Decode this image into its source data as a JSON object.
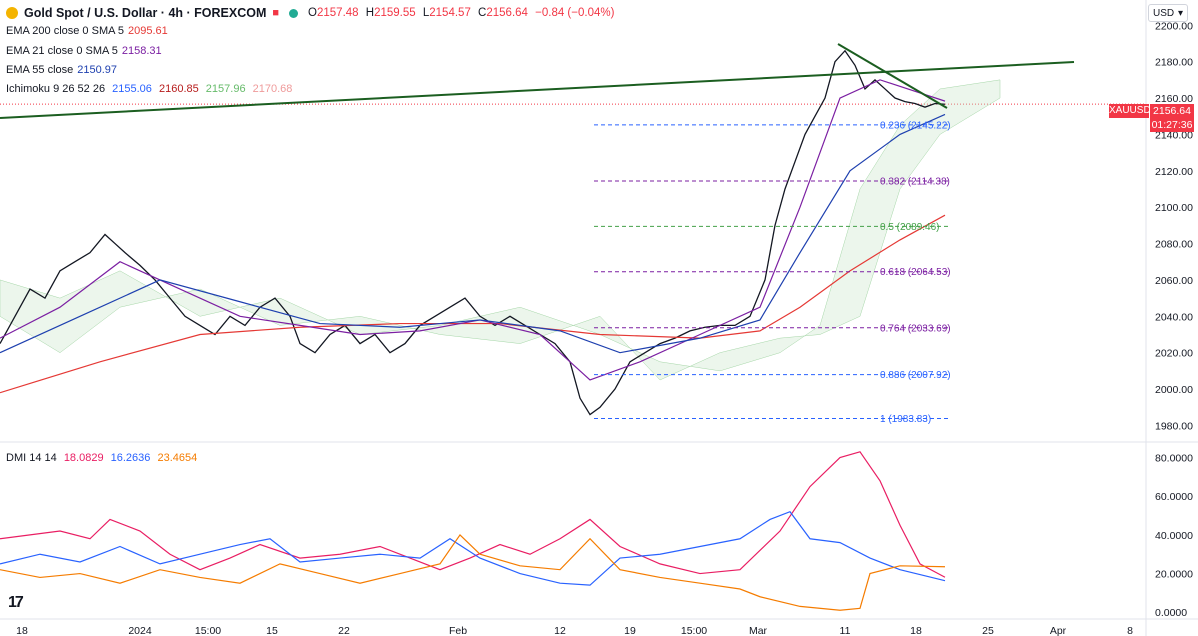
{
  "header": {
    "symbol_title": "Gold Spot / U.S. Dollar · 4h · FOREXCOM",
    "ohlc": {
      "o_label": "O",
      "o": "2157.48",
      "h_label": "H",
      "h": "2159.55",
      "l_label": "L",
      "l": "2154.57",
      "c_label": "C",
      "c": "2156.64",
      "change": "−0.84 (−0.04%)"
    },
    "currency": "USD"
  },
  "indicators": [
    {
      "label": "EMA 200 close 0 SMA 5",
      "value": "2095.61",
      "color": "#e53935"
    },
    {
      "label": "EMA 21 close 0 SMA 5",
      "value": "2158.31",
      "color": "#7b1fa2"
    },
    {
      "label": "EMA 55 close",
      "value": "2150.97",
      "color": "#1e40af"
    },
    {
      "label": "Ichimoku 9 26 52 26",
      "values": [
        "2155.06",
        "2160.85",
        "2157.96",
        "2170.68"
      ],
      "colors": [
        "#2962ff",
        "#b71c1c",
        "#66bb6a",
        "#ef9a9a"
      ]
    }
  ],
  "price_badge": {
    "ticker": "XAUUSD",
    "price": "2156.64",
    "countdown": "01:27:36"
  },
  "dmi": {
    "label": "DMI 14 14",
    "values": [
      "18.0829",
      "16.2636",
      "23.4654"
    ],
    "colors": [
      "#e91e63",
      "#2962ff",
      "#f57c00"
    ]
  },
  "chart_data": [
    {
      "type": "line",
      "title": "Gold Spot / U.S. Dollar · 4h · FOREXCOM",
      "y_ticks": [
        "2200.00",
        "2180.00",
        "2160.00",
        "2140.00",
        "2120.00",
        "2100.00",
        "2080.00",
        "2060.00",
        "2040.00",
        "2020.00",
        "2000.00",
        "1980.00"
      ],
      "ylim": [
        1972,
        2204
      ],
      "x_ticks": [
        "18",
        "2024",
        "15:00",
        "15",
        "22",
        "Feb",
        "12",
        "19",
        "15:00",
        "Mar",
        "11",
        "18",
        "25",
        "Apr",
        "8"
      ],
      "series": [
        {
          "name": "Close",
          "color": "#131722",
          "points": [
            [
              0,
              2025
            ],
            [
              15,
              2040
            ],
            [
              30,
              2055
            ],
            [
              45,
              2050
            ],
            [
              60,
              2065
            ],
            [
              75,
              2070
            ],
            [
              90,
              2075
            ],
            [
              105,
              2085
            ],
            [
              115,
              2080
            ],
            [
              125,
              2075
            ],
            [
              140,
              2068
            ],
            [
              155,
              2060
            ],
            [
              170,
              2050
            ],
            [
              185,
              2040
            ],
            [
              200,
              2035
            ],
            [
              215,
              2030
            ],
            [
              230,
              2040
            ],
            [
              245,
              2035
            ],
            [
              260,
              2045
            ],
            [
              275,
              2050
            ],
            [
              290,
              2040
            ],
            [
              300,
              2025
            ],
            [
              315,
              2020
            ],
            [
              330,
              2030
            ],
            [
              345,
              2035
            ],
            [
              360,
              2025
            ],
            [
              375,
              2030
            ],
            [
              390,
              2020
            ],
            [
              405,
              2025
            ],
            [
              420,
              2035
            ],
            [
              435,
              2040
            ],
            [
              450,
              2045
            ],
            [
              465,
              2050
            ],
            [
              480,
              2040
            ],
            [
              495,
              2035
            ],
            [
              510,
              2040
            ],
            [
              525,
              2035
            ],
            [
              540,
              2030
            ],
            [
              555,
              2025
            ],
            [
              570,
              2015
            ],
            [
              580,
              1995
            ],
            [
              590,
              1986
            ],
            [
              600,
              1990
            ],
            [
              615,
              2000
            ],
            [
              630,
              2015
            ],
            [
              645,
              2020
            ],
            [
              660,
              2025
            ],
            [
              675,
              2028
            ],
            [
              690,
              2032
            ],
            [
              705,
              2034
            ],
            [
              720,
              2035
            ],
            [
              735,
              2035
            ],
            [
              750,
              2040
            ],
            [
              765,
              2060
            ],
            [
              775,
              2090
            ],
            [
              785,
              2110
            ],
            [
              795,
              2125
            ],
            [
              805,
              2140
            ],
            [
              815,
              2150
            ],
            [
              825,
              2160
            ],
            [
              835,
              2180
            ],
            [
              845,
              2186
            ],
            [
              855,
              2178
            ],
            [
              865,
              2165
            ],
            [
              875,
              2170
            ],
            [
              885,
              2165
            ],
            [
              895,
              2160
            ],
            [
              905,
              2158
            ],
            [
              915,
              2157
            ],
            [
              925,
              2155
            ],
            [
              935,
              2157
            ],
            [
              945,
              2156.6
            ]
          ]
        },
        {
          "name": "EMA 200",
          "color": "#e53935",
          "points": [
            [
              0,
              1998
            ],
            [
              100,
              2015
            ],
            [
              200,
              2030
            ],
            [
              300,
              2034
            ],
            [
              400,
              2036
            ],
            [
              500,
              2036
            ],
            [
              600,
              2030
            ],
            [
              700,
              2028
            ],
            [
              760,
              2032
            ],
            [
              800,
              2045
            ],
            [
              850,
              2065
            ],
            [
              900,
              2082
            ],
            [
              945,
              2095.6
            ]
          ]
        },
        {
          "name": "EMA 21",
          "color": "#7b1fa2",
          "points": [
            [
              0,
              2028
            ],
            [
              60,
              2045
            ],
            [
              120,
              2070
            ],
            [
              180,
              2055
            ],
            [
              240,
              2040
            ],
            [
              300,
              2035
            ],
            [
              360,
              2030
            ],
            [
              420,
              2032
            ],
            [
              480,
              2038
            ],
            [
              540,
              2030
            ],
            [
              590,
              2005
            ],
            [
              640,
              2015
            ],
            [
              700,
              2030
            ],
            [
              760,
              2045
            ],
            [
              800,
              2100
            ],
            [
              840,
              2160
            ],
            [
              880,
              2170
            ],
            [
              945,
              2158.3
            ]
          ]
        },
        {
          "name": "EMA 55",
          "color": "#1e40af",
          "points": [
            [
              0,
              2020
            ],
            [
              80,
              2040
            ],
            [
              160,
              2060
            ],
            [
              240,
              2048
            ],
            [
              320,
              2036
            ],
            [
              400,
              2034
            ],
            [
              480,
              2038
            ],
            [
              560,
              2032
            ],
            [
              620,
              2020
            ],
            [
              700,
              2028
            ],
            [
              760,
              2038
            ],
            [
              800,
              2075
            ],
            [
              850,
              2120
            ],
            [
              900,
              2140
            ],
            [
              945,
              2151
            ]
          ]
        }
      ],
      "annotations": [
        {
          "text": "0.236 (2145.22)",
          "y": 2145.22,
          "color": "#2962ff"
        },
        {
          "text": "0.382 (2114.38)",
          "y": 2114.38,
          "color": "#7b1fa2"
        },
        {
          "text": "0.5 (2089.46)",
          "y": 2089.46,
          "color": "#43a047"
        },
        {
          "text": "0.618 (2064.53)",
          "y": 2064.53,
          "color": "#7b1fa2"
        },
        {
          "text": "0.764 (2033.69)",
          "y": 2033.69,
          "color": "#7b1fa2"
        },
        {
          "text": "0.886 (2007.92)",
          "y": 2007.92,
          "color": "#2962ff"
        },
        {
          "text": "1 (1983.83)",
          "y": 1983.83,
          "color": "#2962ff"
        }
      ]
    },
    {
      "type": "line",
      "y_ticks": [
        "80.0000",
        "60.0000",
        "40.0000",
        "20.0000",
        "0.0000"
      ],
      "ylim": [
        -3,
        86
      ],
      "series": [
        {
          "name": "DMI",
          "color": "#e91e63",
          "points": [
            [
              0,
              38
            ],
            [
              30,
              40
            ],
            [
              60,
              42
            ],
            [
              90,
              38
            ],
            [
              110,
              48
            ],
            [
              140,
              42
            ],
            [
              170,
              30
            ],
            [
              200,
              22
            ],
            [
              230,
              28
            ],
            [
              260,
              35
            ],
            [
              300,
              28
            ],
            [
              340,
              30
            ],
            [
              380,
              34
            ],
            [
              410,
              28
            ],
            [
              440,
              22
            ],
            [
              470,
              28
            ],
            [
              500,
              35
            ],
            [
              530,
              30
            ],
            [
              560,
              38
            ],
            [
              590,
              48
            ],
            [
              620,
              34
            ],
            [
              660,
              25
            ],
            [
              700,
              20
            ],
            [
              740,
              22
            ],
            [
              780,
              42
            ],
            [
              810,
              65
            ],
            [
              840,
              80
            ],
            [
              860,
              83
            ],
            [
              880,
              68
            ],
            [
              900,
              45
            ],
            [
              920,
              25
            ],
            [
              945,
              18.1
            ]
          ]
        },
        {
          "name": "DMI",
          "color": "#2962ff",
          "points": [
            [
              0,
              25
            ],
            [
              40,
              30
            ],
            [
              80,
              26
            ],
            [
              120,
              34
            ],
            [
              160,
              25
            ],
            [
              200,
              30
            ],
            [
              240,
              35
            ],
            [
              270,
              38
            ],
            [
              300,
              26
            ],
            [
              340,
              28
            ],
            [
              380,
              30
            ],
            [
              420,
              28
            ],
            [
              450,
              38
            ],
            [
              480,
              28
            ],
            [
              520,
              20
            ],
            [
              560,
              15
            ],
            [
              590,
              14
            ],
            [
              620,
              28
            ],
            [
              660,
              30
            ],
            [
              700,
              34
            ],
            [
              740,
              38
            ],
            [
              770,
              48
            ],
            [
              790,
              52
            ],
            [
              810,
              38
            ],
            [
              840,
              36
            ],
            [
              870,
              28
            ],
            [
              900,
              22
            ],
            [
              945,
              16.3
            ]
          ]
        },
        {
          "name": "DMI",
          "color": "#f57c00",
          "points": [
            [
              0,
              22
            ],
            [
              40,
              18
            ],
            [
              80,
              20
            ],
            [
              120,
              15
            ],
            [
              160,
              22
            ],
            [
              200,
              18
            ],
            [
              240,
              15
            ],
            [
              280,
              25
            ],
            [
              320,
              20
            ],
            [
              360,
              15
            ],
            [
              400,
              20
            ],
            [
              440,
              25
            ],
            [
              460,
              40
            ],
            [
              480,
              30
            ],
            [
              520,
              24
            ],
            [
              560,
              22
            ],
            [
              590,
              38
            ],
            [
              620,
              22
            ],
            [
              660,
              18
            ],
            [
              700,
              15
            ],
            [
              740,
              12
            ],
            [
              760,
              8
            ],
            [
              800,
              3
            ],
            [
              840,
              1
            ],
            [
              860,
              2
            ],
            [
              870,
              20
            ],
            [
              900,
              24
            ],
            [
              945,
              23.5
            ]
          ]
        }
      ]
    }
  ]
}
